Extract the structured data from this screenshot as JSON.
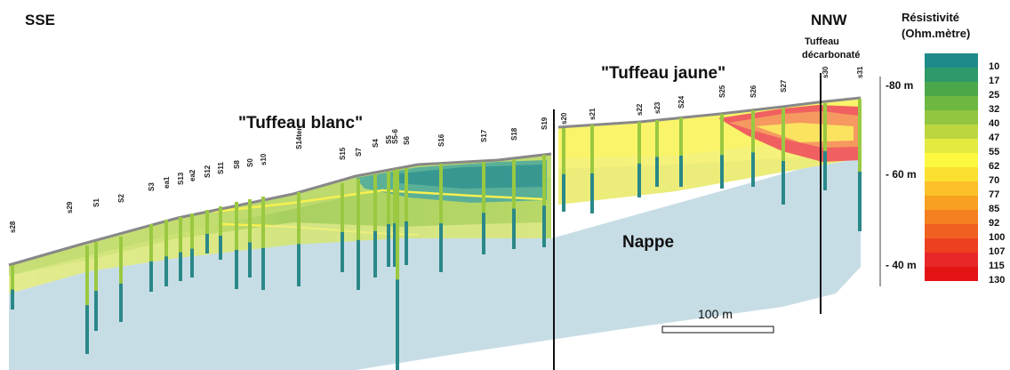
{
  "directions": {
    "left": "SSE",
    "right": "NNW"
  },
  "zones": {
    "tuffeau_blanc": "\"Tuffeau blanc\"",
    "tuffeau_jaune": "\"Tuffeau jaune\"",
    "tuffeau_decarbonate_line1": "Tuffeau",
    "tuffeau_decarbonate_line2": "décarbonaté",
    "nappe": "Nappe"
  },
  "depth_markers": [
    "-80 m",
    "- 60 m",
    "- 40 m"
  ],
  "scale_bar": {
    "label": "100 m"
  },
  "legend": {
    "title_line1": "Résistivité",
    "title_line2": "(Ohm.mètre)",
    "entries": [
      {
        "value": "10",
        "color": "#1e8a8a"
      },
      {
        "value": "17",
        "color": "#2e9a6a"
      },
      {
        "value": "25",
        "color": "#4aa84a"
      },
      {
        "value": "32",
        "color": "#6cb840"
      },
      {
        "value": "40",
        "color": "#92c640"
      },
      {
        "value": "47",
        "color": "#bcd640"
      },
      {
        "value": "55",
        "color": "#e4ea40"
      },
      {
        "value": "62",
        "color": "#fcf840"
      },
      {
        "value": "70",
        "color": "#fce030"
      },
      {
        "value": "77",
        "color": "#fcc028"
      },
      {
        "value": "85",
        "color": "#f8a020"
      },
      {
        "value": "92",
        "color": "#f48020"
      },
      {
        "value": "100",
        "color": "#f06020"
      },
      {
        "value": "107",
        "color": "#ec4020"
      },
      {
        "value": "115",
        "color": "#e82828"
      },
      {
        "value": "130",
        "color": "#e41414"
      }
    ]
  },
  "boreholes": [
    "s28",
    "s29",
    "S1",
    "S2",
    "S3",
    "ea1",
    "S13",
    "ea2",
    "S12",
    "S11",
    "S8",
    "S0",
    "s10",
    "S14ter",
    "S15",
    "S7",
    "S4",
    "S5",
    "S5-6",
    "S6",
    "S16",
    "S17",
    "S18",
    "S19",
    "s20",
    "s21",
    "s22",
    "s23",
    "S24",
    "S25",
    "S26",
    "S27",
    "s30",
    "s31"
  ]
}
